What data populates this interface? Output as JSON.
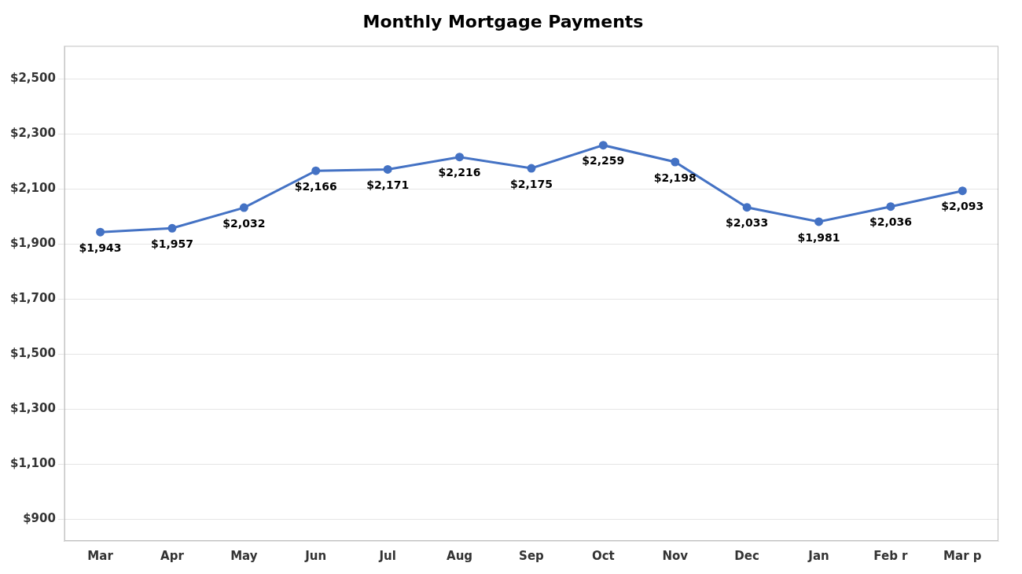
{
  "chart_data": {
    "type": "line",
    "title": "Monthly Mortgage Payments",
    "categories": [
      "Mar",
      "Apr",
      "May",
      "Jun",
      "Jul",
      "Aug",
      "Sep",
      "Oct",
      "Nov",
      "Dec",
      "Jan",
      "Feb r",
      "Mar p"
    ],
    "values": [
      1943,
      1957,
      2032,
      2166,
      2171,
      2216,
      2175,
      2259,
      2198,
      2033,
      1981,
      2036,
      2093
    ],
    "value_labels": [
      "$1,943",
      "$1,957",
      "$2,032",
      "$2,166",
      "$2,171",
      "$2,216",
      "$2,175",
      "$2,259",
      "$2,198",
      "$2,033",
      "$1,981",
      "$2,036",
      "$2,093"
    ],
    "color": "#4472C4",
    "marker": "circle",
    "ylim": [
      820,
      2620
    ],
    "yticks": [
      {
        "value": 900,
        "label": "$900"
      },
      {
        "value": 1100,
        "label": "$1,100"
      },
      {
        "value": 1300,
        "label": "$1,300"
      },
      {
        "value": 1500,
        "label": "$1,500"
      },
      {
        "value": 1700,
        "label": "$1,700"
      },
      {
        "value": 1900,
        "label": "$1,900"
      },
      {
        "value": 2100,
        "label": "$2,100"
      },
      {
        "value": 2300,
        "label": "$2,300"
      },
      {
        "value": 2500,
        "label": "$2,500"
      }
    ],
    "grid": true,
    "data_labels": true
  }
}
